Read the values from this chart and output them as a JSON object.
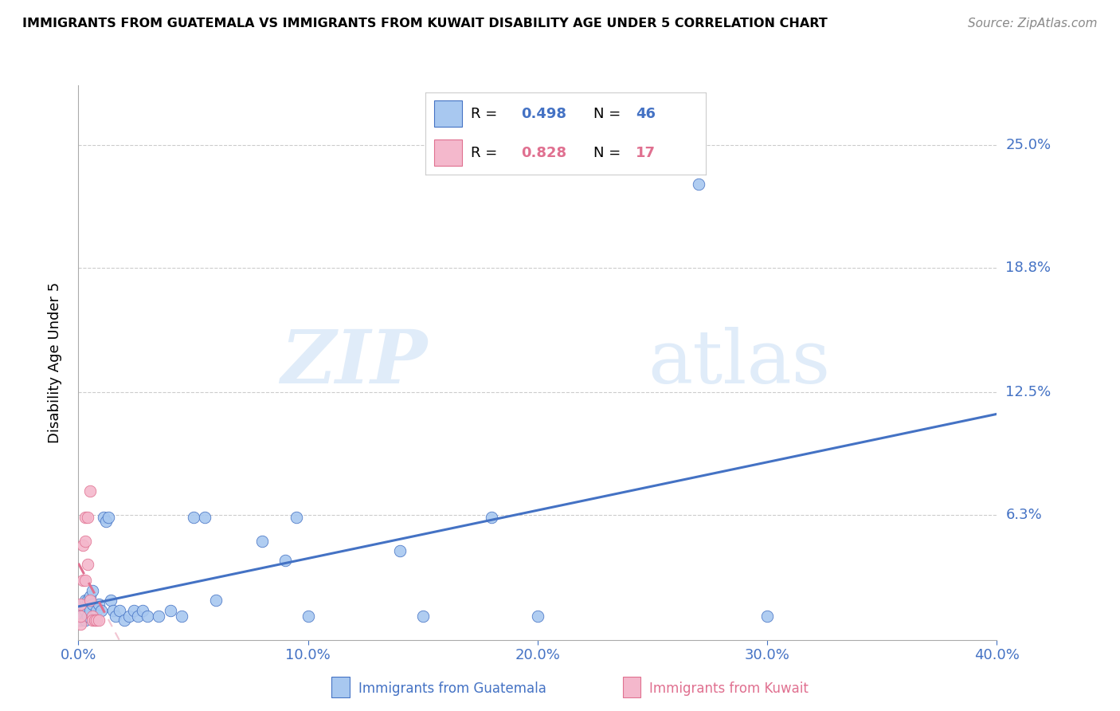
{
  "title": "IMMIGRANTS FROM GUATEMALA VS IMMIGRANTS FROM KUWAIT DISABILITY AGE UNDER 5 CORRELATION CHART",
  "source": "Source: ZipAtlas.com",
  "ylabel": "Disability Age Under 5",
  "xlim": [
    0.0,
    0.4
  ],
  "ylim": [
    0.0,
    0.28
  ],
  "xtick_vals": [
    0.0,
    0.1,
    0.2,
    0.3,
    0.4
  ],
  "xtick_labels": [
    "0.0%",
    "10.0%",
    "20.0%",
    "30.0%",
    "40.0%"
  ],
  "ytick_vals": [
    0.0,
    0.063,
    0.125,
    0.188,
    0.25
  ],
  "ytick_labels": [
    "",
    "6.3%",
    "12.5%",
    "18.8%",
    "25.0%"
  ],
  "color_guatemala": "#a8c8f0",
  "color_kuwait": "#f4b8cc",
  "color_trend_guatemala": "#4472c4",
  "color_trend_kuwait": "#e07090",
  "color_black": "#000000",
  "color_text_blue": "#4472c4",
  "watermark_color": "#ddeeff",
  "guatemala_x": [
    0.001,
    0.001,
    0.002,
    0.002,
    0.003,
    0.003,
    0.003,
    0.004,
    0.004,
    0.005,
    0.005,
    0.006,
    0.006,
    0.007,
    0.008,
    0.009,
    0.01,
    0.011,
    0.012,
    0.013,
    0.014,
    0.015,
    0.016,
    0.018,
    0.02,
    0.022,
    0.024,
    0.026,
    0.028,
    0.03,
    0.035,
    0.04,
    0.045,
    0.05,
    0.055,
    0.06,
    0.08,
    0.09,
    0.095,
    0.1,
    0.14,
    0.15,
    0.18,
    0.2,
    0.27,
    0.3
  ],
  "guatemala_y": [
    0.01,
    0.015,
    0.012,
    0.018,
    0.01,
    0.015,
    0.02,
    0.012,
    0.02,
    0.015,
    0.022,
    0.018,
    0.025,
    0.012,
    0.015,
    0.018,
    0.015,
    0.062,
    0.06,
    0.062,
    0.02,
    0.015,
    0.012,
    0.015,
    0.01,
    0.012,
    0.015,
    0.012,
    0.015,
    0.012,
    0.012,
    0.015,
    0.012,
    0.062,
    0.062,
    0.02,
    0.05,
    0.04,
    0.062,
    0.012,
    0.045,
    0.012,
    0.062,
    0.012,
    0.23,
    0.012
  ],
  "kuwait_x": [
    0.001,
    0.001,
    0.001,
    0.002,
    0.002,
    0.003,
    0.003,
    0.003,
    0.004,
    0.004,
    0.005,
    0.005,
    0.006,
    0.006,
    0.007,
    0.008,
    0.009
  ],
  "kuwait_y": [
    0.008,
    0.012,
    0.018,
    0.03,
    0.048,
    0.062,
    0.05,
    0.03,
    0.038,
    0.062,
    0.075,
    0.02,
    0.012,
    0.01,
    0.01,
    0.01,
    0.01
  ],
  "trend_g_x0": 0.0,
  "trend_g_x1": 0.4,
  "trend_k_x0": 0.0,
  "trend_k_x1": 0.013
}
